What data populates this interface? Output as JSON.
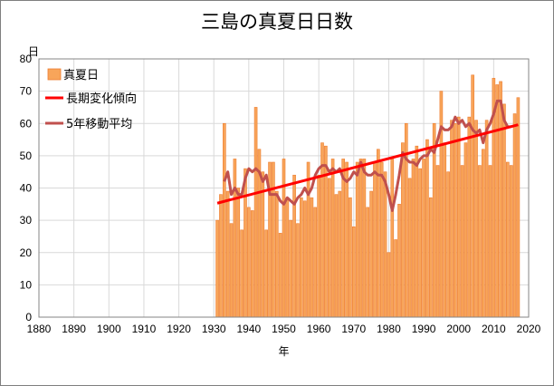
{
  "title": "三島の真夏日日数",
  "chart_data": {
    "type": "bar",
    "title": "三島の真夏日日数",
    "xlabel": "年",
    "ylabel": "日",
    "xlim": [
      1880,
      2020
    ],
    "ylim": [
      0,
      80
    ],
    "x_ticks": [
      1880,
      1890,
      1900,
      1910,
      1920,
      1930,
      1940,
      1950,
      1960,
      1970,
      1980,
      1990,
      2000,
      2010,
      2020
    ],
    "y_ticks": [
      0,
      10,
      20,
      30,
      40,
      50,
      60,
      70,
      80
    ],
    "grid": true,
    "legend_position": "top-left",
    "x": [
      1931,
      1932,
      1933,
      1934,
      1935,
      1936,
      1937,
      1938,
      1939,
      1940,
      1941,
      1942,
      1943,
      1944,
      1945,
      1946,
      1947,
      1948,
      1949,
      1950,
      1951,
      1952,
      1953,
      1954,
      1955,
      1956,
      1957,
      1958,
      1959,
      1960,
      1961,
      1962,
      1963,
      1964,
      1965,
      1966,
      1967,
      1968,
      1969,
      1970,
      1971,
      1972,
      1973,
      1974,
      1975,
      1976,
      1977,
      1978,
      1979,
      1980,
      1981,
      1982,
      1983,
      1984,
      1985,
      1986,
      1987,
      1988,
      1989,
      1990,
      1991,
      1992,
      1993,
      1994,
      1995,
      1996,
      1997,
      1998,
      1999,
      2000,
      2001,
      2002,
      2003,
      2004,
      2005,
      2006,
      2007,
      2008,
      2009,
      2010,
      2011,
      2012,
      2013,
      2014,
      2015,
      2016,
      2017
    ],
    "series": [
      {
        "name": "真夏日",
        "kind": "bar",
        "color": "#f8a55a",
        "edge_color": "#ed7d31",
        "values": [
          30,
          38,
          60,
          39,
          29,
          49,
          40,
          27,
          46,
          34,
          33,
          65,
          52,
          45,
          27,
          48,
          48,
          39,
          26,
          49,
          37,
          30,
          44,
          29,
          37,
          36,
          48,
          37,
          34,
          44,
          54,
          53,
          43,
          49,
          38,
          39,
          49,
          48,
          37,
          28,
          48,
          49,
          49,
          34,
          39,
          48,
          52,
          48,
          45,
          20,
          49,
          24,
          35,
          54,
          60,
          43,
          49,
          53,
          46,
          49,
          55,
          37,
          60,
          47,
          70,
          54,
          45,
          61,
          60,
          62,
          47,
          54,
          62,
          75,
          61,
          47,
          52,
          61,
          47,
          74,
          72,
          73,
          66,
          48,
          47,
          63,
          68
        ]
      },
      {
        "name": "長期変化傾向",
        "kind": "trend",
        "color": "#ff0000",
        "x": [
          1931,
          2017
        ],
        "values": [
          35.3,
          59.6
        ]
      },
      {
        "name": "5年移動平均",
        "kind": "moving_average",
        "color": "#c0504d",
        "x": [
          1933,
          1934,
          1935,
          1936,
          1937,
          1938,
          1939,
          1940,
          1941,
          1942,
          1943,
          1944,
          1945,
          1946,
          1947,
          1948,
          1949,
          1950,
          1951,
          1952,
          1953,
          1954,
          1955,
          1956,
          1957,
          1958,
          1959,
          1960,
          1961,
          1962,
          1963,
          1964,
          1965,
          1966,
          1967,
          1968,
          1969,
          1970,
          1971,
          1972,
          1973,
          1974,
          1975,
          1976,
          1977,
          1978,
          1979,
          1980,
          1981,
          1982,
          1983,
          1984,
          1985,
          1986,
          1987,
          1988,
          1989,
          1990,
          1991,
          1992,
          1993,
          1994,
          1995,
          1996,
          1997,
          1998,
          1999,
          2000,
          2001,
          2002,
          2003,
          2004,
          2005,
          2006,
          2007,
          2008,
          2009,
          2010,
          2011,
          2012,
          2013,
          2014,
          2015
        ],
        "values": [
          42,
          45,
          38,
          40,
          38,
          38,
          43,
          46,
          45,
          46,
          45,
          42,
          44,
          38,
          38,
          38,
          36,
          35,
          37,
          36,
          35,
          37,
          38,
          40,
          38,
          40,
          44,
          46,
          47,
          47,
          45,
          46,
          45,
          46,
          43,
          42,
          43,
          45,
          44,
          48,
          45,
          44,
          44,
          45,
          44,
          44,
          42,
          38,
          33,
          38,
          44,
          51,
          49,
          48,
          48,
          47,
          49,
          50,
          50,
          52,
          51,
          55,
          59,
          58,
          58,
          59,
          62,
          60,
          61,
          59,
          60,
          58,
          57,
          58,
          54,
          58,
          60,
          63,
          67,
          67,
          61,
          59,
          59
        ]
      }
    ]
  }
}
